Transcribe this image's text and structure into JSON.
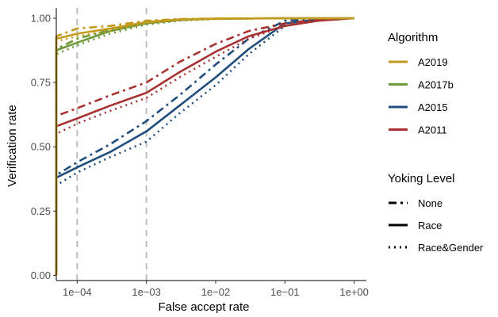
{
  "chart_data": {
    "type": "line",
    "xlabel": "False accept rate",
    "ylabel": "Verification rate",
    "x_scale": "log10",
    "x_ticks": [
      0.0001,
      0.001,
      0.01,
      0.1,
      1
    ],
    "x_tick_labels": [
      "1e−04",
      "1e−03",
      "1e−02",
      "1e−01",
      "1e+00"
    ],
    "xlim": [
      5e-05,
      1.5
    ],
    "y_ticks": [
      0,
      0.25,
      0.5,
      0.75,
      1
    ],
    "y_tick_labels": [
      "0.00",
      "0.25",
      "0.50",
      "0.75",
      "1.00"
    ],
    "ylim": [
      -0.02,
      1.04
    ],
    "reference_lines_x": [
      0.0001,
      0.001
    ],
    "grid": false,
    "legend_placement": "right",
    "legend": {
      "algorithm_title": "Algorithm",
      "algorithm_entries": [
        "A2019",
        "A2017b",
        "A2015",
        "A2011"
      ],
      "yoking_title": "Yoking Level",
      "yoking_entries": [
        "None",
        "Race",
        "Race&Gender"
      ]
    },
    "colors": {
      "A2019": "#C49A1C",
      "A2017b": "#6E9A3C",
      "A2015": "#1F4E7C",
      "A2011": "#A83232",
      "reference_line": "#BDBDBD"
    },
    "series": [
      {
        "algorithm": "A2019",
        "yoking": "Race",
        "x": [
          5e-05,
          0.0001,
          0.0003,
          0.001,
          0.003,
          0.01,
          0.1,
          1
        ],
        "y": [
          0.92,
          0.94,
          0.96,
          0.985,
          0.995,
          0.998,
          1.0,
          1.0
        ]
      },
      {
        "algorithm": "A2019",
        "yoking": "None",
        "x": [
          5e-05,
          0.0001,
          0.0003,
          0.001,
          0.003,
          0.01,
          0.1,
          1
        ],
        "y": [
          0.93,
          0.96,
          0.97,
          0.99,
          0.997,
          0.999,
          1.0,
          1.0
        ]
      },
      {
        "algorithm": "A2019",
        "yoking": "Race&Gender",
        "x": [
          5e-05,
          0.0001,
          0.0003,
          0.001,
          0.003,
          0.01,
          0.1,
          1
        ],
        "y": [
          0.91,
          0.93,
          0.95,
          0.98,
          0.993,
          0.998,
          1.0,
          1.0
        ]
      },
      {
        "algorithm": "A2017b",
        "yoking": "Race",
        "x": [
          5e-05,
          0.0001,
          0.0003,
          0.001,
          0.003,
          0.01,
          0.1,
          1
        ],
        "y": [
          0.875,
          0.905,
          0.95,
          0.98,
          0.993,
          0.998,
          1.0,
          1.0
        ]
      },
      {
        "algorithm": "A2017b",
        "yoking": "None",
        "x": [
          5e-05,
          0.0001,
          0.0003,
          0.001,
          0.003,
          0.01,
          0.1,
          1
        ],
        "y": [
          0.88,
          0.92,
          0.955,
          0.985,
          0.995,
          0.998,
          1.0,
          1.0
        ]
      },
      {
        "algorithm": "A2017b",
        "yoking": "Race&Gender",
        "x": [
          5e-05,
          0.0001,
          0.0003,
          0.001,
          0.003,
          0.01,
          0.1,
          1
        ],
        "y": [
          0.86,
          0.895,
          0.94,
          0.975,
          0.99,
          0.997,
          1.0,
          1.0
        ]
      },
      {
        "algorithm": "A2015",
        "yoking": "Race",
        "x": [
          5e-05,
          0.0001,
          0.0003,
          0.001,
          0.003,
          0.01,
          0.03,
          0.1,
          0.3,
          1
        ],
        "y": [
          0.38,
          0.42,
          0.48,
          0.56,
          0.66,
          0.77,
          0.88,
          0.98,
          0.995,
          1.0
        ]
      },
      {
        "algorithm": "A2015",
        "yoking": "None",
        "x": [
          5e-05,
          0.0001,
          0.0003,
          0.001,
          0.003,
          0.01,
          0.03,
          0.1,
          0.3,
          1
        ],
        "y": [
          0.39,
          0.44,
          0.51,
          0.6,
          0.7,
          0.82,
          0.92,
          0.99,
          0.998,
          1.0
        ]
      },
      {
        "algorithm": "A2015",
        "yoking": "Race&Gender",
        "x": [
          5e-05,
          0.0001,
          0.0003,
          0.001,
          0.003,
          0.01,
          0.03,
          0.1,
          0.3,
          1
        ],
        "y": [
          0.35,
          0.4,
          0.46,
          0.52,
          0.63,
          0.74,
          0.86,
          0.97,
          0.993,
          1.0
        ]
      },
      {
        "algorithm": "A2011",
        "yoking": "Race",
        "x": [
          5e-05,
          0.0001,
          0.0003,
          0.001,
          0.003,
          0.01,
          0.03,
          0.1,
          0.3,
          1
        ],
        "y": [
          0.58,
          0.61,
          0.66,
          0.71,
          0.79,
          0.87,
          0.93,
          0.97,
          0.99,
          1.0
        ]
      },
      {
        "algorithm": "A2011",
        "yoking": "None",
        "x": [
          5e-05,
          0.0001,
          0.0003,
          0.001,
          0.003,
          0.01,
          0.03,
          0.1,
          0.3,
          1
        ],
        "y": [
          0.62,
          0.65,
          0.7,
          0.75,
          0.83,
          0.9,
          0.95,
          0.98,
          0.995,
          1.0
        ]
      },
      {
        "algorithm": "A2011",
        "yoking": "Race&Gender",
        "x": [
          5e-05,
          0.0001,
          0.0003,
          0.001,
          0.003,
          0.01,
          0.03,
          0.1,
          0.3,
          1
        ],
        "y": [
          0.55,
          0.59,
          0.64,
          0.69,
          0.77,
          0.85,
          0.92,
          0.97,
          0.99,
          1.0
        ]
      }
    ]
  }
}
